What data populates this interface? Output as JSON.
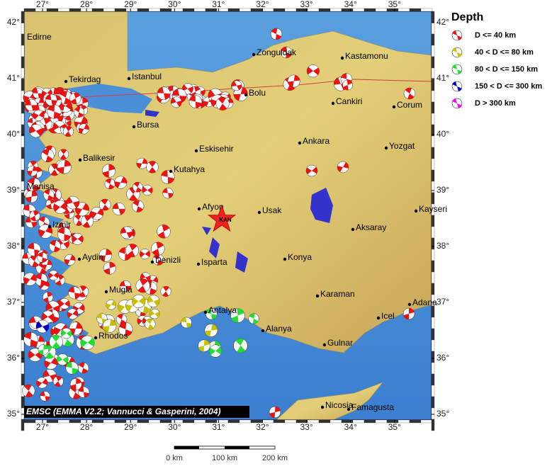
{
  "map": {
    "lon_ticks": [
      {
        "value": 27,
        "label": "27°"
      },
      {
        "value": 28,
        "label": "28°"
      },
      {
        "value": 29,
        "label": "29°"
      },
      {
        "value": 30,
        "label": "30°"
      },
      {
        "value": 31,
        "label": "31°"
      },
      {
        "value": 32,
        "label": "32°"
      },
      {
        "value": 33,
        "label": "33°"
      },
      {
        "value": 34,
        "label": "34°"
      },
      {
        "value": 35,
        "label": "35°"
      }
    ],
    "lat_ticks": [
      {
        "value": 35,
        "label": "35°"
      },
      {
        "value": 36,
        "label": "36°"
      },
      {
        "value": 37,
        "label": "37°"
      },
      {
        "value": 38,
        "label": "38°"
      },
      {
        "value": 39,
        "label": "39°"
      },
      {
        "value": 40,
        "label": "40°"
      },
      {
        "value": 41,
        "label": "41°"
      },
      {
        "value": 42,
        "label": "42°"
      }
    ],
    "cities": [
      "Edirne",
      "Tekirdag",
      "Istanbul",
      "Zonguldak",
      "Kastamonu",
      "Bolu",
      "Cankiri",
      "Corum",
      "Bursa",
      "Eskisehir",
      "Ankara",
      "Yozgat",
      "Balikesir",
      "Kutahya",
      "Manisa",
      "Afyon",
      "Usak",
      "Kayseri",
      "Aksaray",
      "Izmir",
      "Aydin",
      "Konya",
      "Isparta",
      "Denizli",
      "Mugla",
      "Karaman",
      "Antalya",
      "Adana",
      "Icel",
      "Alanya",
      "Rhodos",
      "Gulnar",
      "Nicosia",
      "Famagusta"
    ],
    "event_label": "KAN",
    "legend": {
      "title": "Depth",
      "items": [
        {
          "label": "D <= 40 km",
          "color": "#ee1111"
        },
        {
          "label": "40 < D <= 80 km",
          "color": "#c8c000"
        },
        {
          "label": "80 < D <= 150 km",
          "color": "#22dd33"
        },
        {
          "label": "150 < D <= 300 km",
          "color": "#0000cc"
        },
        {
          "label": "D > 300 km",
          "color": "#ff00ff"
        }
      ]
    },
    "credit": "EMSC (EMMA V2.2; Vannucci & Gasperini, 2004)",
    "scale_bar": {
      "labels": [
        "0 km",
        "100 km",
        "200 km"
      ]
    }
  }
}
